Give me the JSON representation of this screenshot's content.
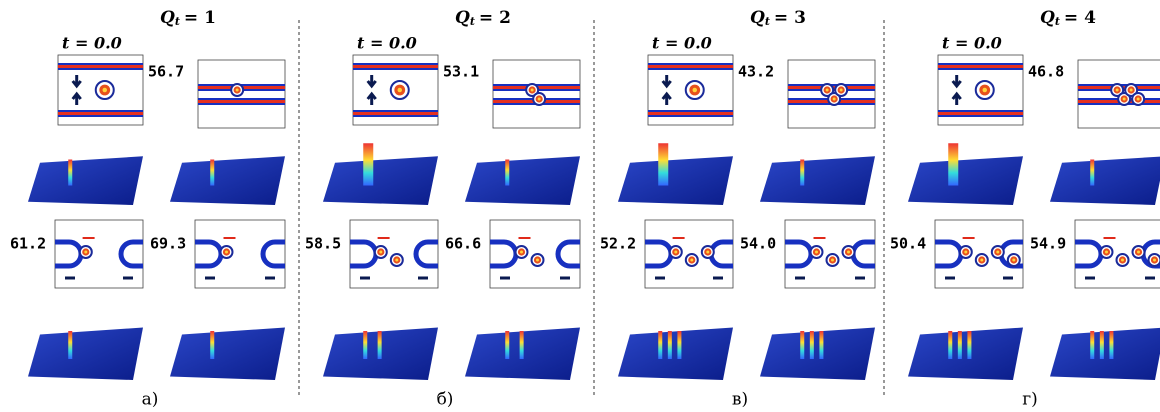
{
  "panels": [
    {
      "symbol": "Q",
      "subscript": "t",
      "equals": "= 1",
      "initial": "t = 0.0",
      "times": [
        "56.7",
        "61.2",
        "69.3"
      ],
      "caption": "а)"
    },
    {
      "symbol": "Q",
      "subscript": "t",
      "equals": "= 2",
      "initial": "t = 0.0",
      "times": [
        "53.1",
        "58.5",
        "66.6"
      ],
      "caption": "б)"
    },
    {
      "symbol": "Q",
      "subscript": "t",
      "equals": "= 3",
      "initial": "t = 0.0",
      "times": [
        "43.2",
        "52.2",
        "54.0"
      ],
      "caption": "в)"
    },
    {
      "symbol": "Q",
      "subscript": "t",
      "equals": "= 4",
      "initial": "t = 0.0",
      "times": [
        "46.8",
        "50.4",
        "54.9"
      ],
      "caption": "г)"
    }
  ]
}
